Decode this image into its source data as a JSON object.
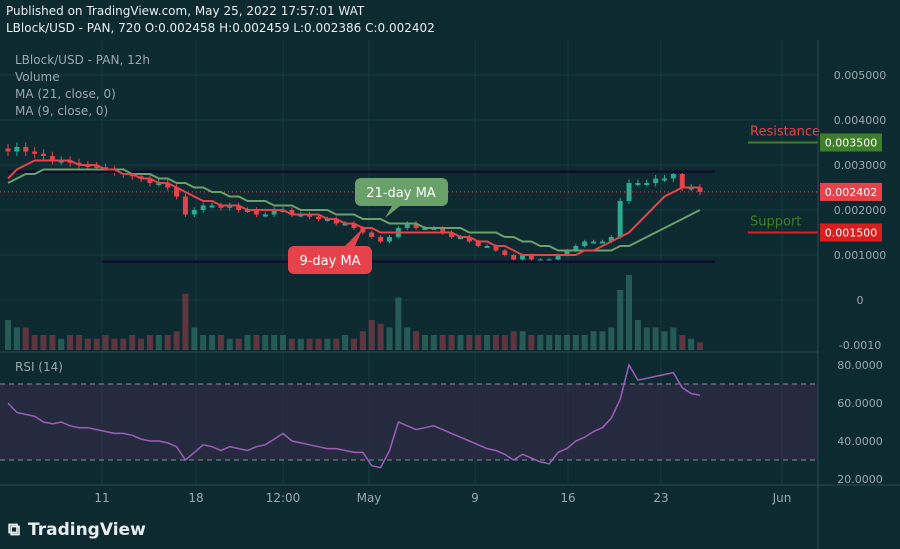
{
  "header": {
    "published": "Published on TradingView.com, May 25, 2022 17:57:01 WAT",
    "ohlc": "LBlock/USD - PAN, 720  O:0.002458  H:0.002459  L:0.002386  C:0.002402"
  },
  "legend": {
    "symbol": "LBlock/USD - PAN, 12h",
    "volume": "Volume",
    "ma21": "MA (21, close, 0)",
    "ma9": "MA (9, close, 0)",
    "rsi": "RSI (14)"
  },
  "logo": {
    "text": "TradingView"
  },
  "annotations": {
    "ma21_label": "21-day MA",
    "ma9_label": "9-day MA",
    "resistance": "Resistance",
    "support": "Support"
  },
  "colors": {
    "background": "#0e2a31",
    "up": "#2ea88f",
    "down": "#e6424b",
    "ma9": "#e6424b",
    "ma21": "#6aa06a",
    "rsi": "#9b5fb8",
    "resistance": "#3f7f2a",
    "support": "#d81e1e"
  },
  "chart_data": {
    "type": "candlestick",
    "price_axis": {
      "ticks": [
        "0.005000",
        "0.004000",
        "0.003000",
        "0.002000",
        "0.001000",
        "0",
        "-0.0010"
      ],
      "range": [
        -0.001,
        0.0055
      ]
    },
    "price_labels": {
      "resistance": "0.003500",
      "last": "0.002402",
      "support": "0.001500"
    },
    "rsi_axis": {
      "ticks": [
        "80.0000",
        "60.0000",
        "40.0000",
        "20.0000"
      ],
      "range": [
        20,
        85
      ],
      "bands": [
        70,
        30
      ]
    },
    "time_axis": [
      "11",
      "18",
      "12:00",
      "May",
      "9",
      "16",
      "23",
      "Jun"
    ],
    "channel": {
      "upper": 0.00285,
      "lower": 0.00085
    },
    "levels": {
      "resistance": 0.0035,
      "support": 0.0015
    },
    "close": [
      0.0033,
      0.0034,
      0.0033,
      0.00325,
      0.0032,
      0.0031,
      0.0031,
      0.00305,
      0.003,
      0.00298,
      0.00295,
      0.0029,
      0.00285,
      0.0028,
      0.00275,
      0.0027,
      0.0026,
      0.0026,
      0.0025,
      0.0023,
      0.0019,
      0.002,
      0.0021,
      0.0021,
      0.00205,
      0.0021,
      0.002,
      0.002,
      0.0019,
      0.0019,
      0.002,
      0.002,
      0.0019,
      0.0019,
      0.00185,
      0.0018,
      0.0018,
      0.0017,
      0.0017,
      0.0016,
      0.0015,
      0.0014,
      0.0013,
      0.0014,
      0.0016,
      0.0017,
      0.0016,
      0.0016,
      0.0016,
      0.0015,
      0.0014,
      0.0014,
      0.0013,
      0.0012,
      0.0012,
      0.0011,
      0.001,
      0.0009,
      0.001,
      0.0009,
      0.0009,
      0.0009,
      0.001,
      0.0011,
      0.0012,
      0.0013,
      0.0013,
      0.0013,
      0.0014,
      0.0022,
      0.0026,
      0.0026,
      0.0026,
      0.0027,
      0.0027,
      0.0028,
      0.0025,
      0.0025,
      0.0024
    ],
    "ma9": [
      0.0027,
      0.0029,
      0.003,
      0.0031,
      0.0031,
      0.0031,
      0.0031,
      0.0031,
      0.003,
      0.003,
      0.003,
      0.0029,
      0.0029,
      0.0028,
      0.0028,
      0.0027,
      0.0027,
      0.0026,
      0.0026,
      0.0025,
      0.0024,
      0.0023,
      0.0022,
      0.0022,
      0.0021,
      0.0021,
      0.0021,
      0.002,
      0.002,
      0.002,
      0.002,
      0.002,
      0.0019,
      0.0019,
      0.0019,
      0.0019,
      0.0018,
      0.0018,
      0.0017,
      0.0017,
      0.0016,
      0.0016,
      0.0015,
      0.0015,
      0.0015,
      0.0015,
      0.0015,
      0.0015,
      0.0015,
      0.0015,
      0.0015,
      0.0014,
      0.0014,
      0.0013,
      0.0013,
      0.0012,
      0.0012,
      0.0011,
      0.001,
      0.001,
      0.001,
      0.001,
      0.001,
      0.001,
      0.001,
      0.0011,
      0.0011,
      0.0012,
      0.0013,
      0.0014,
      0.0015,
      0.0017,
      0.0019,
      0.0021,
      0.0023,
      0.0024,
      0.0025,
      0.0025,
      0.0025
    ],
    "ma21": [
      0.0026,
      0.0027,
      0.0028,
      0.0028,
      0.0029,
      0.0029,
      0.0029,
      0.0029,
      0.0029,
      0.0029,
      0.0029,
      0.0029,
      0.0029,
      0.0029,
      0.0028,
      0.0028,
      0.0028,
      0.0027,
      0.0027,
      0.0026,
      0.0026,
      0.0025,
      0.0025,
      0.0024,
      0.0024,
      0.0023,
      0.0023,
      0.0022,
      0.0022,
      0.0022,
      0.0021,
      0.0021,
      0.0021,
      0.002,
      0.002,
      0.002,
      0.002,
      0.0019,
      0.0019,
      0.0019,
      0.0018,
      0.0018,
      0.0018,
      0.0017,
      0.0017,
      0.0017,
      0.0017,
      0.0016,
      0.0016,
      0.0016,
      0.0016,
      0.0016,
      0.0015,
      0.0015,
      0.0015,
      0.0015,
      0.0014,
      0.0014,
      0.0013,
      0.0013,
      0.0012,
      0.0012,
      0.0011,
      0.0011,
      0.0011,
      0.0011,
      0.0011,
      0.0011,
      0.0011,
      0.0012,
      0.0012,
      0.0013,
      0.0014,
      0.0015,
      0.0016,
      0.0017,
      0.0018,
      0.0019,
      0.002
    ],
    "rsi": [
      60,
      55,
      54,
      53,
      50,
      49,
      50,
      48,
      47,
      47,
      46,
      45,
      44,
      44,
      43,
      41,
      40,
      40,
      39,
      37,
      30,
      34,
      38,
      37,
      35,
      37,
      36,
      35,
      37,
      38,
      41,
      44,
      40,
      39,
      38,
      37,
      36,
      36,
      35,
      34,
      34,
      27,
      26,
      35,
      50,
      48,
      46,
      47,
      48,
      46,
      44,
      42,
      40,
      38,
      36,
      35,
      33,
      30,
      33,
      31,
      29,
      28,
      34,
      36,
      40,
      42,
      45,
      47,
      52,
      62,
      80,
      72,
      73,
      74,
      75,
      76,
      68,
      65,
      64
    ],
    "volume": [
      0.4,
      0.3,
      0.3,
      0.2,
      0.2,
      0.2,
      0.15,
      0.2,
      0.2,
      0.15,
      0.15,
      0.2,
      0.15,
      0.15,
      0.2,
      0.15,
      0.2,
      0.2,
      0.2,
      0.25,
      0.75,
      0.3,
      0.2,
      0.2,
      0.2,
      0.15,
      0.15,
      0.2,
      0.2,
      0.2,
      0.2,
      0.2,
      0.15,
      0.15,
      0.15,
      0.15,
      0.15,
      0.15,
      0.2,
      0.15,
      0.25,
      0.4,
      0.35,
      0.3,
      0.7,
      0.3,
      0.25,
      0.2,
      0.2,
      0.2,
      0.2,
      0.2,
      0.2,
      0.2,
      0.2,
      0.2,
      0.2,
      0.25,
      0.25,
      0.2,
      0.2,
      0.2,
      0.2,
      0.2,
      0.2,
      0.2,
      0.25,
      0.25,
      0.3,
      0.8,
      1.0,
      0.4,
      0.3,
      0.3,
      0.25,
      0.3,
      0.2,
      0.15,
      0.1
    ]
  }
}
